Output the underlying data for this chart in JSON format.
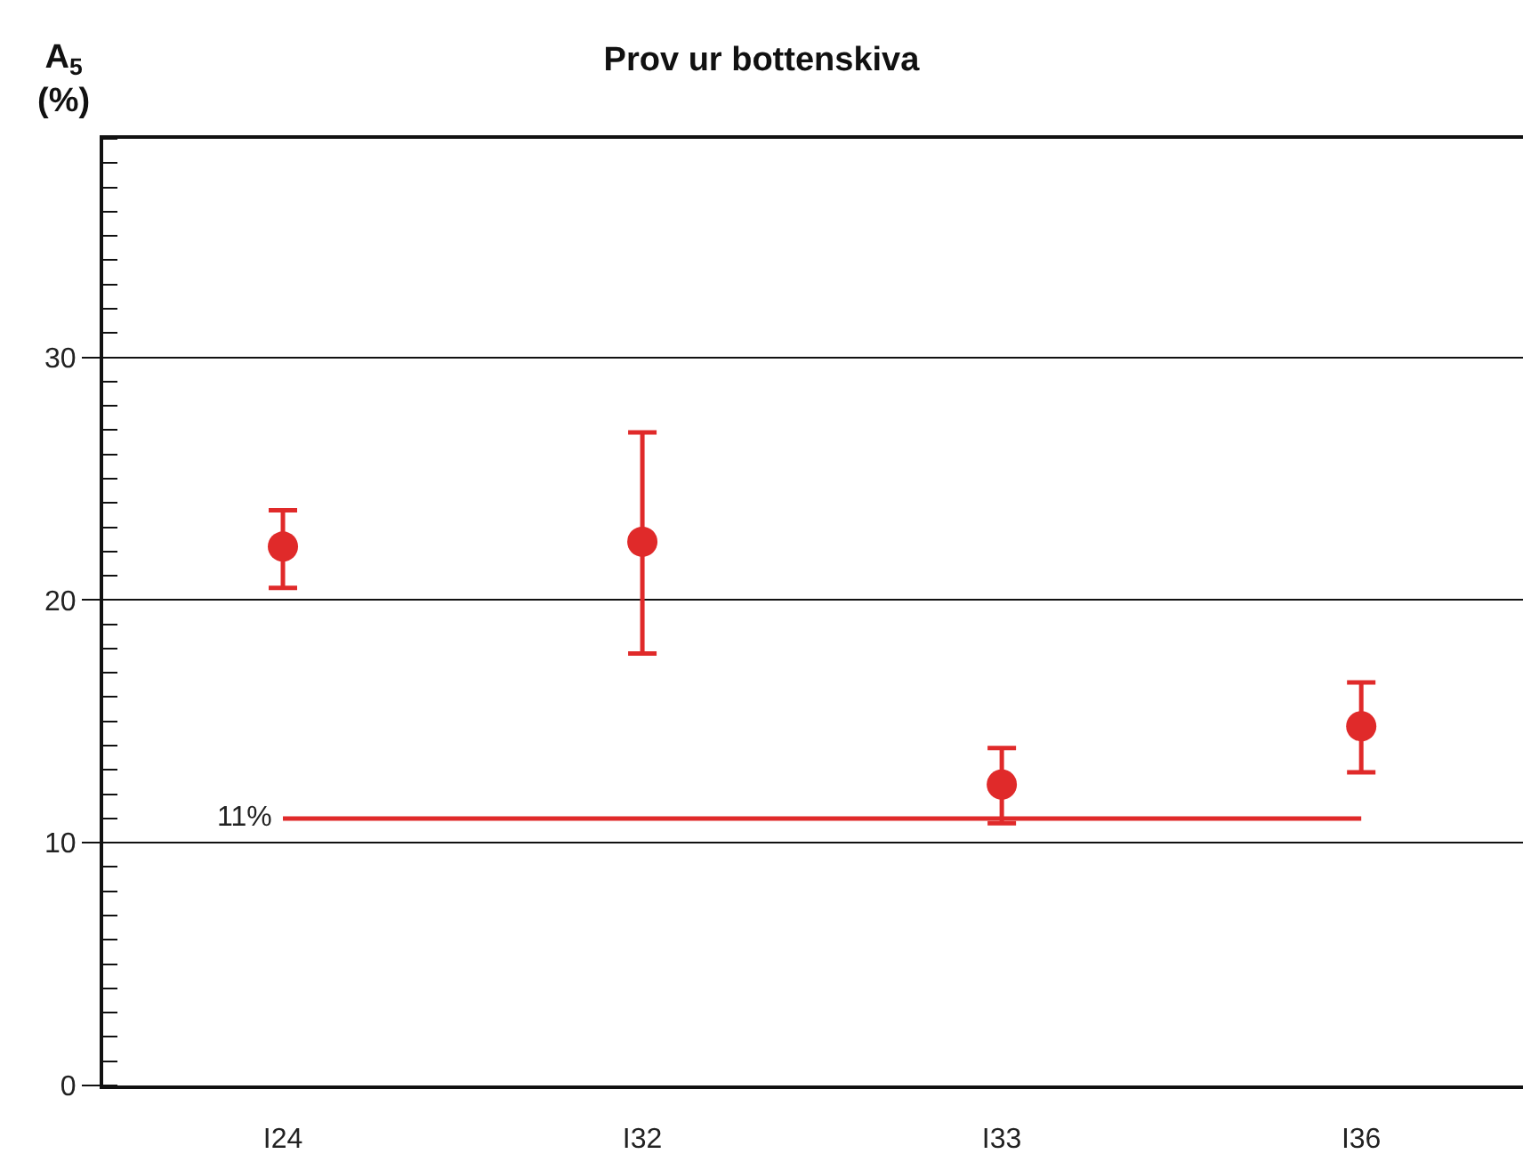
{
  "chart_data": {
    "type": "scatter",
    "title": "Prov ur bottenskiva",
    "ylabel": "A$_{5}$ (%)",
    "categories": [
      "I24",
      "I32",
      "I33",
      "I36"
    ],
    "series": [
      {
        "color": "#e02a2a",
        "values": [
          22.2,
          22.4,
          12.4,
          14.8
        ],
        "errors": [
          [
            20.5,
            23.7
          ],
          [
            17.8,
            26.9
          ],
          [
            10.8,
            13.9
          ],
          [
            12.9,
            16.6
          ]
        ]
      }
    ],
    "ylim": [
      0,
      39
    ],
    "yticks": [
      0,
      10,
      20,
      30
    ],
    "grid": "y",
    "marker": "circle",
    "ref_lines": [
      {
        "axis": "y",
        "value": 11,
        "label": "11%",
        "color": "#e02a2a"
      }
    ]
  }
}
